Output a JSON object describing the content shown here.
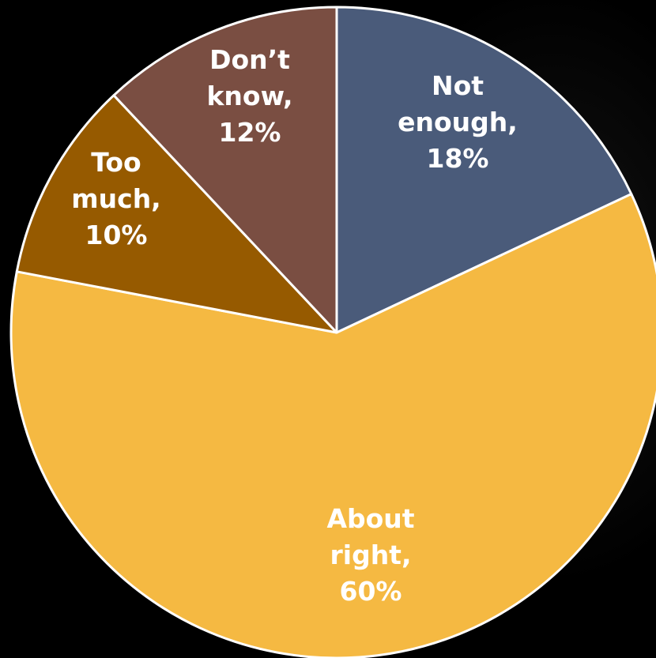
{
  "chart_data": {
    "type": "pie",
    "title": "",
    "slices": [
      {
        "label_lines": [
          "Not",
          "enough,",
          "18%"
        ],
        "category": "Not enough",
        "value": 18,
        "color": "#4a5b7a"
      },
      {
        "label_lines": [
          "About",
          "right,",
          "60%"
        ],
        "category": "About right",
        "value": 60,
        "color": "#f5b942"
      },
      {
        "label_lines": [
          "Too",
          "much,",
          "10%"
        ],
        "category": "Too much",
        "value": 10,
        "color": "#965a00"
      },
      {
        "label_lines": [
          "Don’t",
          "know,",
          "12%"
        ],
        "category": "Don’t know",
        "value": 12,
        "color": "#7a4e42"
      }
    ],
    "start_angle_deg": 0,
    "direction": "clockwise",
    "legend": "none",
    "border_color": "#ffffff"
  }
}
